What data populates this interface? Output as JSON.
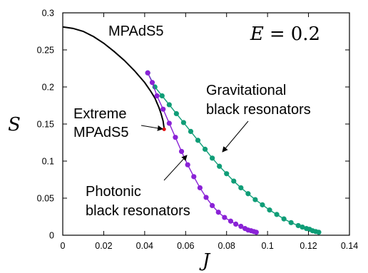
{
  "chart_data": {
    "type": "scatter",
    "xlabel": "J",
    "ylabel": "S",
    "xlim": [
      0,
      0.14
    ],
    "ylim": [
      0,
      0.3
    ],
    "x_ticks": [
      "0",
      "0.02",
      "0.04",
      "0.06",
      "0.08",
      "0.1",
      "0.12",
      "0.14"
    ],
    "y_ticks": [
      "0",
      "0.05",
      "0.1",
      "0.15",
      "0.2",
      "0.25",
      "0.3"
    ],
    "energy_label": "E = 0.2",
    "colors": {
      "mpads": "#000000",
      "gravitational": "#0f9d77",
      "photonic": "#8a22d6",
      "extreme": "#e01010"
    },
    "series": [
      {
        "name": "MPAdS5",
        "kind": "line",
        "x": [
          0,
          0.005,
          0.01,
          0.015,
          0.02,
          0.025,
          0.03,
          0.035,
          0.04,
          0.043,
          0.045,
          0.047,
          0.048,
          0.049,
          0.0495
        ],
        "y": [
          0.281,
          0.279,
          0.275,
          0.268,
          0.259,
          0.248,
          0.236,
          0.222,
          0.206,
          0.194,
          0.185,
          0.172,
          0.164,
          0.154,
          0.144
        ]
      },
      {
        "name": "Gravitational black resonators",
        "kind": "line+markers",
        "x": [
          0.0415,
          0.045,
          0.0485,
          0.052,
          0.0555,
          0.059,
          0.0625,
          0.066,
          0.0695,
          0.073,
          0.0765,
          0.08,
          0.0835,
          0.087,
          0.0905,
          0.094,
          0.0975,
          0.101,
          0.1045,
          0.108,
          0.1115,
          0.115,
          0.117,
          0.119,
          0.1205,
          0.122,
          0.1235,
          0.125
        ],
        "y": [
          0.219,
          0.2,
          0.188,
          0.176,
          0.164,
          0.152,
          0.14,
          0.128,
          0.116,
          0.104,
          0.093,
          0.083,
          0.073,
          0.064,
          0.056,
          0.048,
          0.041,
          0.034,
          0.028,
          0.022,
          0.017,
          0.013,
          0.011,
          0.009,
          0.008,
          0.006,
          0.005,
          0.004
        ]
      },
      {
        "name": "Photonic black resonators",
        "kind": "line+markers",
        "x": [
          0.0415,
          0.0437,
          0.046,
          0.049,
          0.052,
          0.055,
          0.058,
          0.061,
          0.064,
          0.067,
          0.07,
          0.073,
          0.076,
          0.079,
          0.082,
          0.0845,
          0.087,
          0.089,
          0.0905,
          0.092,
          0.0933,
          0.0945
        ],
        "y": [
          0.219,
          0.206,
          0.188,
          0.17,
          0.151,
          0.132,
          0.113,
          0.095,
          0.079,
          0.064,
          0.051,
          0.04,
          0.031,
          0.024,
          0.019,
          0.015,
          0.012,
          0.009,
          0.007,
          0.006,
          0.005,
          0.004
        ]
      }
    ],
    "extreme_point": {
      "x": 0.0495,
      "y": 0.143
    },
    "annotations": {
      "mpads_label": "MPAdS5",
      "extreme_label_line1": "Extreme",
      "extreme_label_line2": "MPAdS5",
      "grav_label_line1": "Gravitational",
      "grav_label_line2": "black resonators",
      "phot_label_line1": "Photonic",
      "phot_label_line2": "black resonators"
    }
  }
}
